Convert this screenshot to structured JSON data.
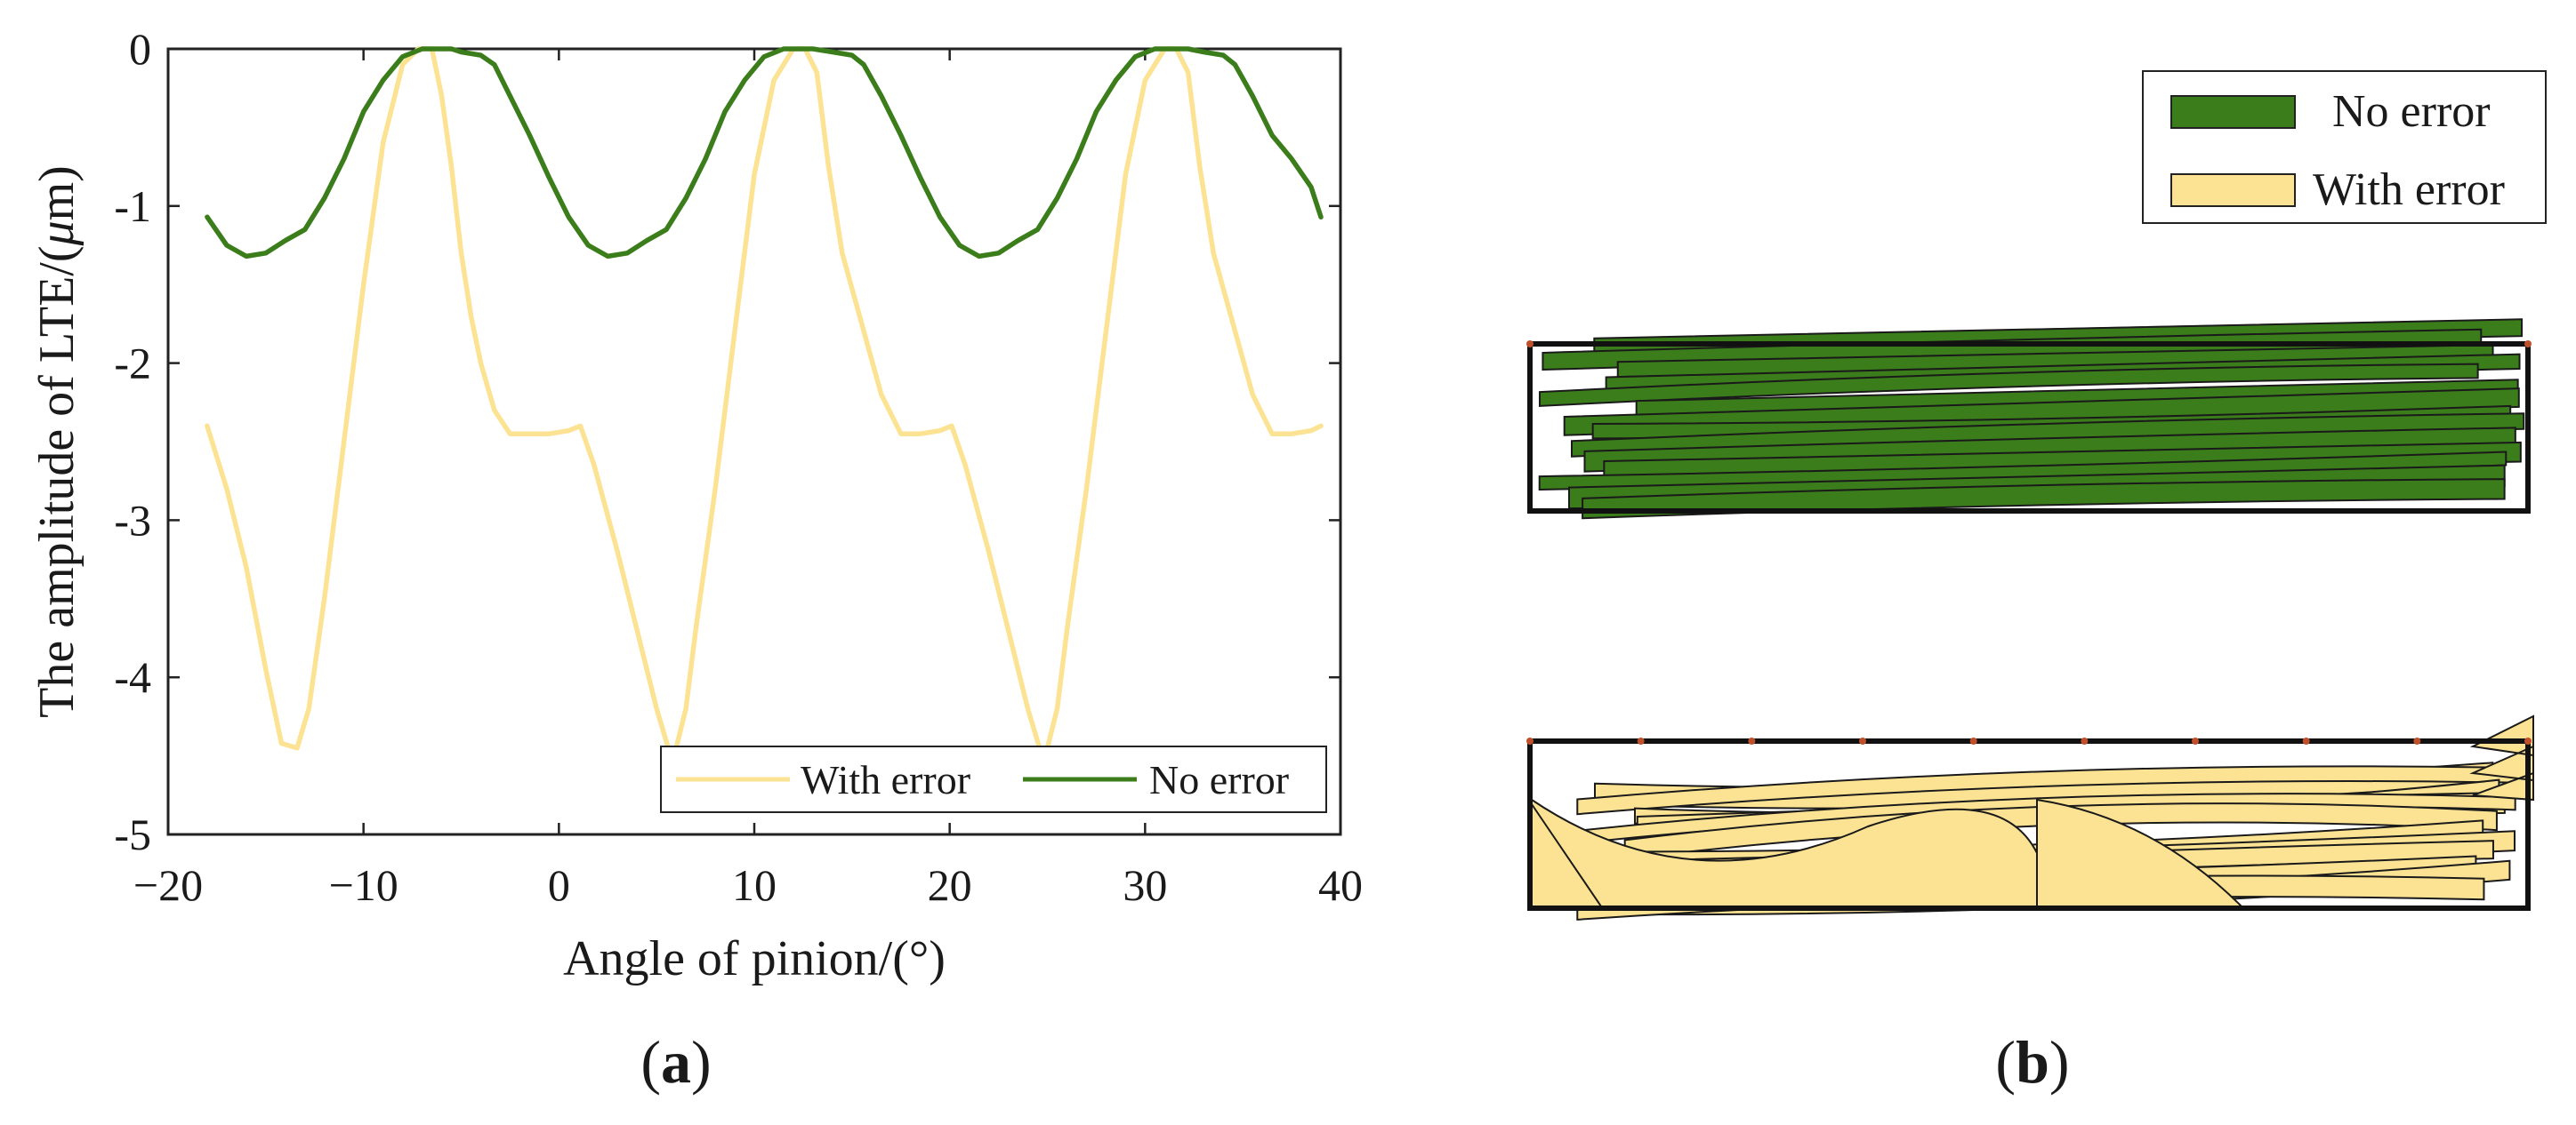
{
  "figure": {
    "panel_a_label": "(a)",
    "panel_b_label": "(b)",
    "paren_open": "(",
    "paren_close": ")",
    "panel_a_letter": "a",
    "panel_b_letter": "b"
  },
  "chart_data": [
    {
      "type": "line",
      "panel": "a",
      "title": "",
      "xlabel": "Angle of pinion/(°)",
      "ylabel": "The amplitude of LTE/(μm)",
      "ylabel_parts": {
        "prefix": "The amplitude of LTE/(",
        "mu": "μ",
        "suffix": "m)"
      },
      "xlim": [
        -20,
        40
      ],
      "ylim": [
        -5,
        0
      ],
      "xticks": [
        "−20",
        "−10",
        "0",
        "10",
        "20",
        "30",
        "40"
      ],
      "xtick_values": [
        -20,
        -10,
        0,
        10,
        20,
        30,
        40
      ],
      "yticks": [
        "0",
        "-1",
        "-2",
        "-3",
        "-4",
        "-5"
      ],
      "ytick_values": [
        0,
        -1,
        -2,
        -3,
        -4,
        -5
      ],
      "legend": {
        "position": "bottom-right",
        "entries": [
          "With error",
          "No error"
        ]
      },
      "series": [
        {
          "name": "With error",
          "color": "#FCE393",
          "x": [
            -18,
            -17,
            -16,
            -15,
            -14.2,
            -13.4,
            -12.8,
            -12,
            -11,
            -10,
            -9,
            -8,
            -7.2,
            -6.5,
            -6,
            -5.5,
            -5,
            -4.5,
            -4,
            -3.3,
            -2.5,
            -1.5,
            -0.5,
            0.5,
            1.1,
            1.8,
            3,
            4,
            5,
            5.6,
            6,
            6.5,
            7,
            8,
            9,
            10,
            11,
            12,
            12.6,
            13.2,
            13.8,
            14.5,
            15.5,
            16.5,
            17.5,
            18.5,
            19.5,
            20.1,
            20.8,
            22,
            23,
            24,
            24.6,
            25,
            25.5,
            26,
            27,
            28,
            29,
            30,
            31,
            31.6,
            32.2,
            32.8,
            33.5,
            34.5,
            35.5,
            36.5,
            37.5,
            38.5,
            39
          ],
          "y": [
            -2.4,
            -2.8,
            -3.3,
            -3.95,
            -4.42,
            -4.45,
            -4.2,
            -3.5,
            -2.5,
            -1.5,
            -0.6,
            -0.1,
            0,
            0,
            -0.3,
            -0.75,
            -1.3,
            -1.7,
            -2.0,
            -2.3,
            -2.45,
            -2.45,
            -2.45,
            -2.43,
            -2.4,
            -2.65,
            -3.2,
            -3.7,
            -4.2,
            -4.45,
            -4.45,
            -4.2,
            -3.7,
            -2.8,
            -1.8,
            -0.8,
            -0.2,
            0,
            0,
            -0.15,
            -0.75,
            -1.3,
            -1.75,
            -2.2,
            -2.45,
            -2.45,
            -2.43,
            -2.4,
            -2.65,
            -3.2,
            -3.7,
            -4.2,
            -4.45,
            -4.45,
            -4.2,
            -3.7,
            -2.8,
            -1.8,
            -0.8,
            -0.2,
            0,
            0,
            -0.15,
            -0.75,
            -1.3,
            -1.75,
            -2.2,
            -2.45,
            -2.45,
            -2.43,
            -2.4
          ]
        },
        {
          "name": "No error",
          "color": "#3A7D1A",
          "x": [
            -18,
            -17,
            -16,
            -15,
            -14,
            -13,
            -12,
            -11,
            -10,
            -9,
            -8,
            -7,
            -6.2,
            -5.5,
            -5,
            -4,
            -3.3,
            -2.5,
            -1.5,
            -0.5,
            0.5,
            1.5,
            2.5,
            3.5,
            4.5,
            5.5,
            6.5,
            7.5,
            8.5,
            9.5,
            10.5,
            11.5,
            12.3,
            13,
            14,
            15,
            15.6,
            16.5,
            17.5,
            18.5,
            19.5,
            20.5,
            21.5,
            22.5,
            23.5,
            24.5,
            25.5,
            26.5,
            27.5,
            28.5,
            29.5,
            30.5,
            31.5,
            32.2,
            33,
            34,
            34.6,
            35.5,
            36.5,
            37.5,
            38.5,
            39
          ],
          "y": [
            -1.07,
            -1.25,
            -1.32,
            -1.3,
            -1.22,
            -1.15,
            -0.95,
            -0.7,
            -0.4,
            -0.2,
            -0.05,
            0,
            0,
            0,
            -0.02,
            -0.04,
            -0.1,
            -0.3,
            -0.55,
            -0.82,
            -1.07,
            -1.25,
            -1.32,
            -1.3,
            -1.22,
            -1.15,
            -0.95,
            -0.7,
            -0.4,
            -0.2,
            -0.05,
            0,
            0,
            0,
            -0.02,
            -0.04,
            -0.1,
            -0.3,
            -0.55,
            -0.82,
            -1.07,
            -1.25,
            -1.32,
            -1.3,
            -1.22,
            -1.15,
            -0.95,
            -0.7,
            -0.4,
            -0.2,
            -0.05,
            0,
            0,
            0,
            -0.02,
            -0.04,
            -0.1,
            -0.3,
            -0.55,
            -0.7,
            -0.88,
            -1.07
          ]
        }
      ]
    },
    {
      "type": "other",
      "panel": "b",
      "description_legend": true,
      "legend": {
        "position": "top-right",
        "entries": [
          {
            "label": "No error",
            "color": "#3A7D1A"
          },
          {
            "label": "With error",
            "color": "#FCE393"
          }
        ]
      }
    }
  ]
}
